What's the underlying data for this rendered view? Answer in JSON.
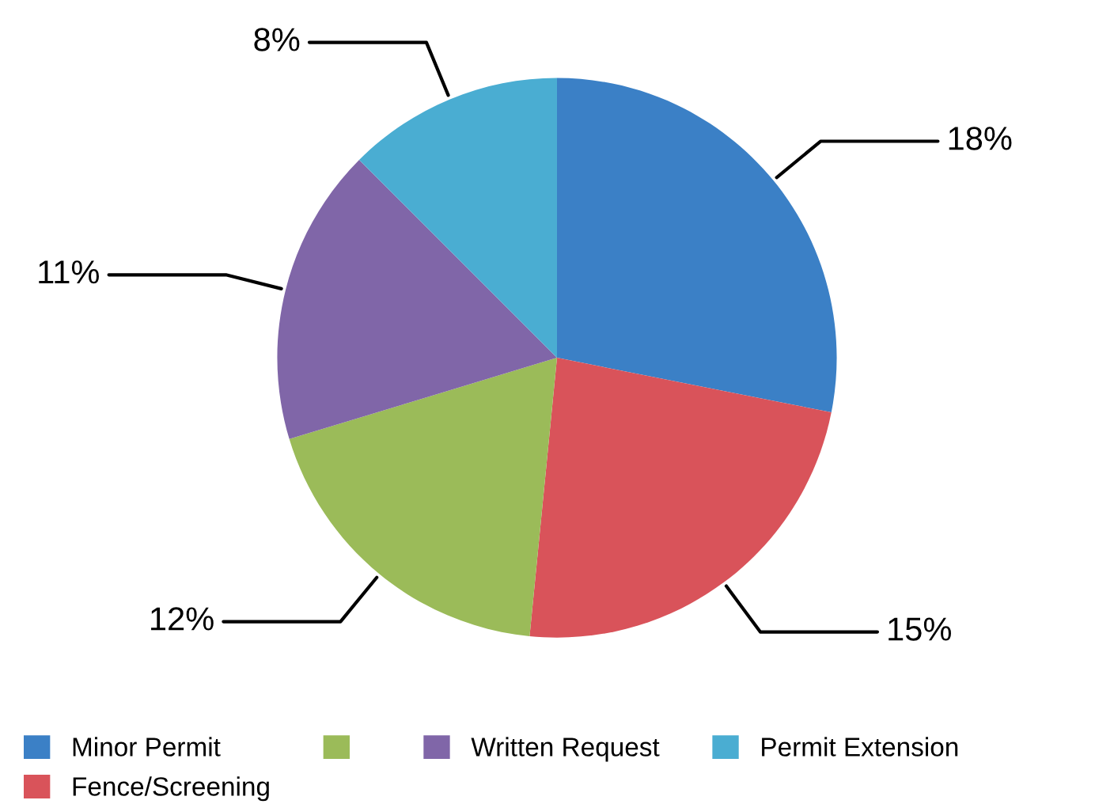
{
  "chart_data": {
    "type": "pie",
    "categories": [
      "Minor Permit",
      "Fence/Screening",
      null,
      "Written Request",
      "Permit Extension"
    ],
    "values": [
      18,
      15,
      12,
      11,
      8
    ],
    "value_labels": [
      "18%",
      "15%",
      "12%",
      "11%",
      "8%"
    ],
    "colors": [
      "#3b80c6",
      "#d9535a",
      "#9bbb59",
      "#8066a8",
      "#4aadd2"
    ],
    "legend": "bottom"
  }
}
